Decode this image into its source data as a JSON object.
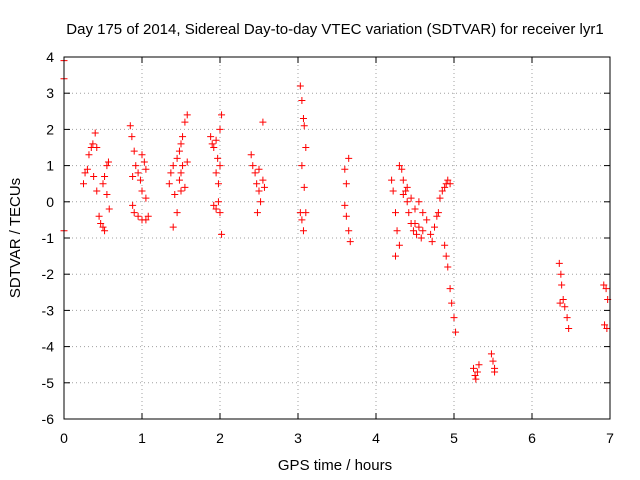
{
  "chart_data": {
    "type": "scatter",
    "title": "Day 175 of 2014, Sidereal Day-to-day VTEC variation (SDTVAR) for receiver lyr1",
    "xlabel": "GPS time / hours",
    "ylabel": "SDTVAR / TECUs",
    "xlim": [
      0,
      7
    ],
    "ylim": [
      -6,
      4
    ],
    "xticks": [
      0,
      1,
      2,
      3,
      4,
      5,
      6,
      7
    ],
    "yticks": [
      -6,
      -5,
      -4,
      -3,
      -2,
      -1,
      0,
      1,
      2,
      3,
      4
    ],
    "grid": true,
    "marker": "+",
    "colors": {
      "series": "#ff0000",
      "grid": "#a0a0a0",
      "axis": "#000000"
    },
    "series": [
      {
        "name": "lyr1",
        "points": [
          [
            0.0,
            3.9
          ],
          [
            0.0,
            3.4
          ],
          [
            0.0,
            -0.8
          ],
          [
            0.25,
            0.5
          ],
          [
            0.27,
            0.8
          ],
          [
            0.3,
            0.9
          ],
          [
            0.32,
            1.3
          ],
          [
            0.35,
            1.5
          ],
          [
            0.37,
            1.6
          ],
          [
            0.4,
            1.9
          ],
          [
            0.42,
            1.5
          ],
          [
            0.38,
            0.7
          ],
          [
            0.42,
            0.3
          ],
          [
            0.45,
            -0.4
          ],
          [
            0.47,
            -0.6
          ],
          [
            0.5,
            -0.7
          ],
          [
            0.52,
            -0.8
          ],
          [
            0.5,
            0.5
          ],
          [
            0.52,
            0.7
          ],
          [
            0.55,
            1.0
          ],
          [
            0.57,
            1.1
          ],
          [
            0.55,
            0.2
          ],
          [
            0.58,
            -0.2
          ],
          [
            0.85,
            2.1
          ],
          [
            0.87,
            1.8
          ],
          [
            0.9,
            1.4
          ],
          [
            0.92,
            1.0
          ],
          [
            0.88,
            0.7
          ],
          [
            0.95,
            0.8
          ],
          [
            0.98,
            0.6
          ],
          [
            0.88,
            -0.1
          ],
          [
            0.9,
            -0.3
          ],
          [
            0.95,
            -0.4
          ],
          [
            1.0,
            -0.5
          ],
          [
            1.05,
            -0.5
          ],
          [
            1.08,
            -0.4
          ],
          [
            1.0,
            1.3
          ],
          [
            1.03,
            1.1
          ],
          [
            1.05,
            0.9
          ],
          [
            1.0,
            0.3
          ],
          [
            1.05,
            0.1
          ],
          [
            1.35,
            0.5
          ],
          [
            1.37,
            0.8
          ],
          [
            1.4,
            1.0
          ],
          [
            1.42,
            0.2
          ],
          [
            1.45,
            -0.3
          ],
          [
            1.4,
            -0.7
          ],
          [
            1.45,
            1.2
          ],
          [
            1.48,
            1.4
          ],
          [
            1.5,
            1.6
          ],
          [
            1.52,
            1.8
          ],
          [
            1.55,
            2.2
          ],
          [
            1.58,
            2.4
          ],
          [
            1.48,
            0.6
          ],
          [
            1.5,
            0.8
          ],
          [
            1.52,
            1.0
          ],
          [
            1.55,
            0.4
          ],
          [
            1.5,
            0.3
          ],
          [
            1.58,
            1.1
          ],
          [
            1.88,
            1.8
          ],
          [
            1.9,
            1.6
          ],
          [
            1.92,
            1.5
          ],
          [
            1.95,
            1.7
          ],
          [
            1.97,
            1.2
          ],
          [
            2.0,
            1.0
          ],
          [
            1.92,
            -0.1
          ],
          [
            1.95,
            -0.2
          ],
          [
            1.98,
            0.0
          ],
          [
            2.0,
            -0.3
          ],
          [
            2.02,
            -0.9
          ],
          [
            1.95,
            0.8
          ],
          [
            1.98,
            0.5
          ],
          [
            2.0,
            2.0
          ],
          [
            2.02,
            2.4
          ],
          [
            2.4,
            1.3
          ],
          [
            2.42,
            1.0
          ],
          [
            2.45,
            0.8
          ],
          [
            2.47,
            0.5
          ],
          [
            2.5,
            0.3
          ],
          [
            2.52,
            0.0
          ],
          [
            2.48,
            -0.3
          ],
          [
            2.55,
            2.2
          ],
          [
            2.55,
            0.6
          ],
          [
            2.57,
            0.4
          ],
          [
            2.5,
            0.9
          ],
          [
            3.03,
            3.2
          ],
          [
            3.05,
            2.8
          ],
          [
            3.07,
            2.3
          ],
          [
            3.08,
            2.1
          ],
          [
            3.1,
            1.5
          ],
          [
            3.05,
            1.0
          ],
          [
            3.03,
            -0.3
          ],
          [
            3.05,
            -0.5
          ],
          [
            3.07,
            -0.8
          ],
          [
            3.1,
            -0.3
          ],
          [
            3.08,
            0.4
          ],
          [
            3.6,
            0.9
          ],
          [
            3.62,
            0.5
          ],
          [
            3.6,
            -0.1
          ],
          [
            3.62,
            -0.4
          ],
          [
            3.65,
            -0.8
          ],
          [
            3.67,
            -1.1
          ],
          [
            3.65,
            1.2
          ],
          [
            4.2,
            0.6
          ],
          [
            4.22,
            0.3
          ],
          [
            4.25,
            -0.3
          ],
          [
            4.27,
            -0.8
          ],
          [
            4.3,
            -1.2
          ],
          [
            4.25,
            -1.5
          ],
          [
            4.3,
            1.0
          ],
          [
            4.33,
            0.9
          ],
          [
            4.35,
            0.6
          ],
          [
            4.38,
            0.3
          ],
          [
            4.4,
            0.0
          ],
          [
            4.42,
            -0.3
          ],
          [
            4.45,
            -0.6
          ],
          [
            4.48,
            -0.8
          ],
          [
            4.5,
            -0.6
          ],
          [
            4.52,
            -0.9
          ],
          [
            4.55,
            -0.7
          ],
          [
            4.58,
            -1.0
          ],
          [
            4.6,
            -0.8
          ],
          [
            4.35,
            0.2
          ],
          [
            4.4,
            0.4
          ],
          [
            4.45,
            0.1
          ],
          [
            4.5,
            -0.2
          ],
          [
            4.55,
            0.0
          ],
          [
            4.6,
            -0.3
          ],
          [
            4.65,
            -0.5
          ],
          [
            4.7,
            -0.9
          ],
          [
            4.72,
            -1.1
          ],
          [
            4.75,
            -0.7
          ],
          [
            4.78,
            -0.4
          ],
          [
            4.8,
            -0.3
          ],
          [
            4.82,
            0.1
          ],
          [
            4.85,
            0.3
          ],
          [
            4.88,
            0.4
          ],
          [
            4.9,
            0.5
          ],
          [
            4.92,
            0.6
          ],
          [
            4.95,
            0.5
          ],
          [
            4.88,
            -1.2
          ],
          [
            4.9,
            -1.5
          ],
          [
            4.92,
            -1.8
          ],
          [
            4.95,
            -2.4
          ],
          [
            4.97,
            -2.8
          ],
          [
            5.0,
            -3.2
          ],
          [
            5.02,
            -3.6
          ],
          [
            5.25,
            -4.6
          ],
          [
            5.27,
            -4.8
          ],
          [
            5.28,
            -4.9
          ],
          [
            5.3,
            -4.7
          ],
          [
            5.32,
            -4.5
          ],
          [
            5.48,
            -4.2
          ],
          [
            5.5,
            -4.4
          ],
          [
            5.52,
            -4.6
          ],
          [
            5.52,
            -4.7
          ],
          [
            6.35,
            -1.7
          ],
          [
            6.37,
            -2.0
          ],
          [
            6.38,
            -2.3
          ],
          [
            6.4,
            -2.7
          ],
          [
            6.42,
            -2.9
          ],
          [
            6.45,
            -3.2
          ],
          [
            6.47,
            -3.5
          ],
          [
            6.36,
            -2.8
          ],
          [
            6.92,
            -2.3
          ],
          [
            6.95,
            -2.4
          ],
          [
            6.97,
            -2.7
          ],
          [
            6.93,
            -3.4
          ],
          [
            6.96,
            -3.5
          ]
        ]
      }
    ]
  }
}
